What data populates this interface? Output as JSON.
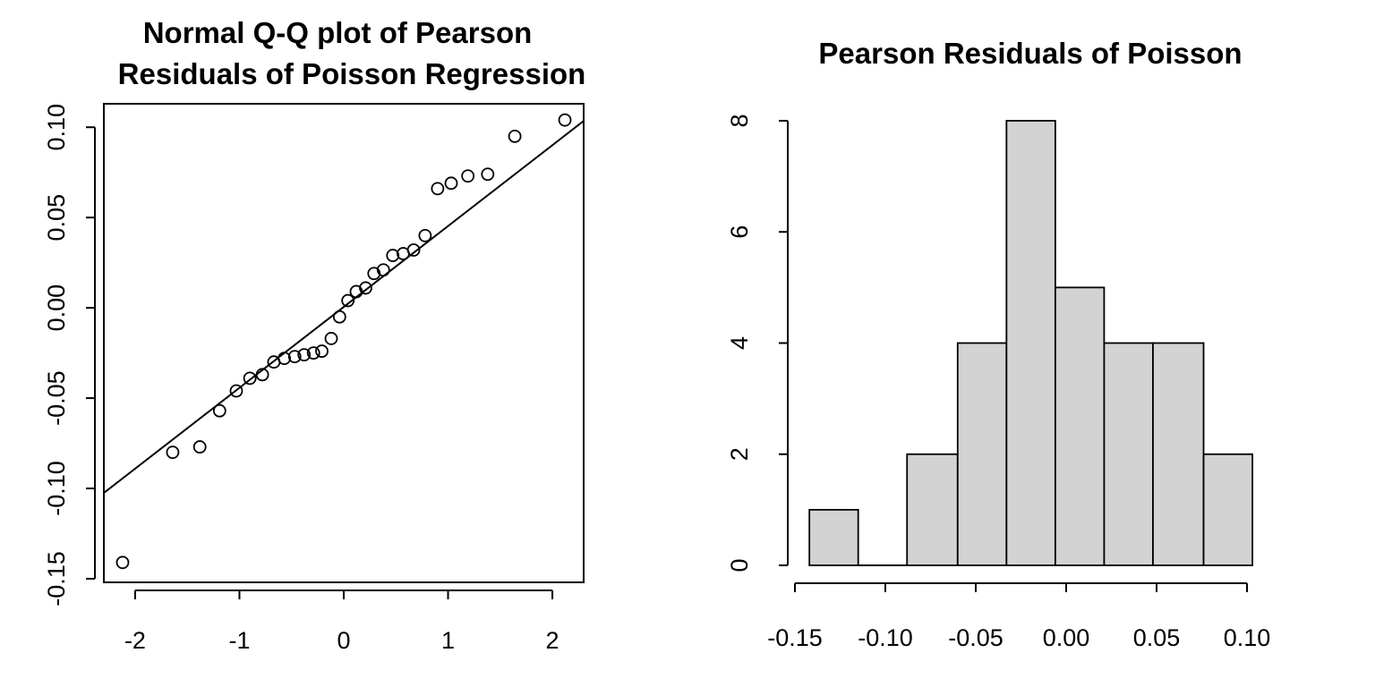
{
  "chart_data": [
    {
      "type": "scatter",
      "title_lines": [
        "Normal Q-Q plot of Pearson",
        "Residuals of Poisson Regression"
      ],
      "xlabel": "",
      "ylabel": "",
      "xlim": [
        -2.3,
        2.3
      ],
      "ylim": [
        -0.152,
        0.113
      ],
      "x_ticks": [
        -2,
        -1,
        0,
        1,
        2
      ],
      "x_tick_labels": [
        "-2",
        "-1",
        "0",
        "1",
        "2"
      ],
      "y_ticks": [
        -0.15,
        -0.1,
        -0.05,
        0.0,
        0.05,
        0.1
      ],
      "y_tick_labels": [
        "-0.15",
        "-0.10",
        "-0.05",
        "0.00",
        "0.05",
        "0.10"
      ],
      "grid": false,
      "points": {
        "x": [
          -2.12,
          -1.64,
          -1.38,
          -1.19,
          -1.03,
          -0.9,
          -0.78,
          -0.67,
          -0.57,
          -0.47,
          -0.38,
          -0.29,
          -0.21,
          -0.12,
          -0.04,
          0.04,
          0.12,
          0.21,
          0.29,
          0.38,
          0.47,
          0.57,
          0.67,
          0.78,
          0.9,
          1.03,
          1.19,
          1.38,
          1.64,
          2.12
        ],
        "y": [
          -0.141,
          -0.08,
          -0.077,
          -0.057,
          -0.046,
          -0.039,
          -0.037,
          -0.03,
          -0.028,
          -0.027,
          -0.026,
          -0.025,
          -0.024,
          -0.017,
          -0.005,
          0.004,
          0.009,
          0.011,
          0.019,
          0.021,
          0.029,
          0.03,
          0.032,
          0.04,
          0.066,
          0.069,
          0.073,
          0.074,
          0.095,
          0.104
        ]
      },
      "reference_line": {
        "x": [
          -2.3,
          2.3
        ],
        "y": [
          -0.1025,
          0.1035
        ]
      }
    },
    {
      "type": "bar",
      "subtype": "histogram",
      "title": "Pearson Residuals of Poisson",
      "xlabel": "",
      "ylabel": "",
      "bin_edges": [
        -0.142,
        -0.115,
        -0.088,
        -0.06,
        -0.033,
        -0.006,
        0.021,
        0.048,
        0.076,
        0.103
      ],
      "counts": [
        1,
        0,
        2,
        4,
        8,
        5,
        4,
        4,
        2
      ],
      "xlim": [
        -0.15,
        0.1
      ],
      "ylim": [
        0,
        8
      ],
      "x_ticks": [
        -0.15,
        -0.1,
        -0.05,
        0.0,
        0.05,
        0.1
      ],
      "x_tick_labels": [
        "-0.15",
        "-0.10",
        "-0.05",
        "0.00",
        "0.05",
        "0.10"
      ],
      "y_ticks": [
        0,
        2,
        4,
        6,
        8
      ],
      "y_tick_labels": [
        "0",
        "2",
        "4",
        "6",
        "8"
      ],
      "grid": false,
      "bar_color": "#d3d3d3"
    }
  ]
}
